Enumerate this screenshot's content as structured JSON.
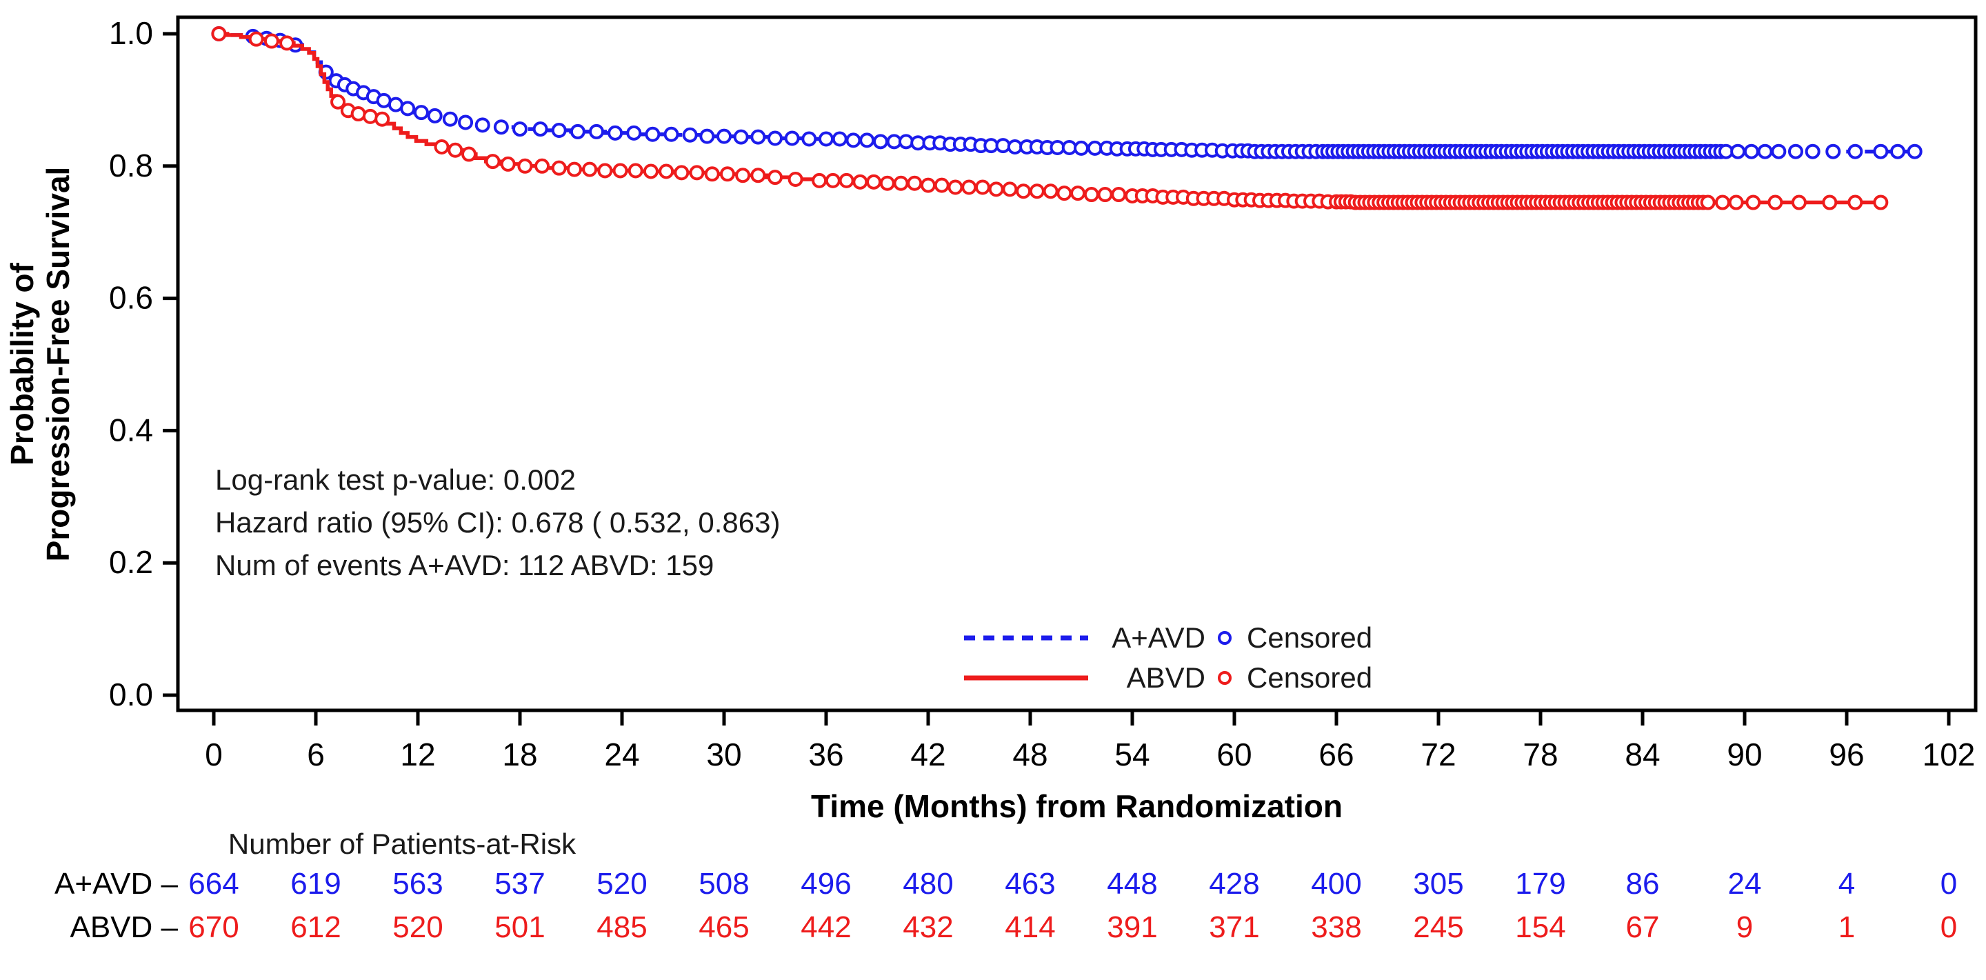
{
  "chart_data": {
    "type": "line",
    "subtype": "kaplan-meier-step",
    "title": "",
    "xlabel": "Time (Months) from Randomization",
    "ylabel_lines": [
      "Probability of",
      "Progression-Free Survival"
    ],
    "xlim": [
      0,
      102
    ],
    "ylim": [
      0.0,
      1.0
    ],
    "grid": false,
    "x_ticks": [
      0,
      6,
      12,
      18,
      24,
      30,
      36,
      42,
      48,
      54,
      60,
      66,
      72,
      78,
      84,
      90,
      96,
      102
    ],
    "y_ticks": [
      "1.0",
      "0.8",
      "0.6",
      "0.4",
      "0.2",
      "0.0"
    ],
    "annotation_lines": [
      "Log-rank test p-value: 0.002",
      "Hazard ratio (95% CI):  0.678 ( 0.532,  0.863)",
      "Num of events  A+AVD: 112  ABVD: 159"
    ],
    "legend": [
      {
        "series": "A+AVD",
        "line_style": "dashed",
        "censored_label": "Censored",
        "color": "#1c1cec"
      },
      {
        "series": "ABVD",
        "line_style": "solid",
        "censored_label": "Censored",
        "color": "#ee1c1c"
      }
    ],
    "series": [
      {
        "name": "A+AVD",
        "color": "#1c1cec",
        "line_style": "dashed",
        "marker": "open-circle",
        "steps": [
          [
            0,
            1.0
          ],
          [
            0.8,
            0.998
          ],
          [
            1.6,
            0.996
          ],
          [
            2.4,
            0.993
          ],
          [
            3.2,
            0.99
          ],
          [
            4.0,
            0.987
          ],
          [
            4.7,
            0.983
          ],
          [
            5.2,
            0.978
          ],
          [
            5.6,
            0.972
          ],
          [
            5.9,
            0.965
          ],
          [
            6.1,
            0.957
          ],
          [
            6.3,
            0.949
          ],
          [
            6.5,
            0.942
          ],
          [
            6.8,
            0.935
          ],
          [
            7.1,
            0.929
          ],
          [
            7.5,
            0.923
          ],
          [
            7.9,
            0.917
          ],
          [
            8.4,
            0.911
          ],
          [
            9.0,
            0.905
          ],
          [
            9.6,
            0.899
          ],
          [
            10.3,
            0.893
          ],
          [
            11.0,
            0.887
          ],
          [
            11.8,
            0.881
          ],
          [
            12.6,
            0.876
          ],
          [
            13.5,
            0.871
          ],
          [
            14.5,
            0.866
          ],
          [
            15.5,
            0.862
          ],
          [
            16.6,
            0.859
          ],
          [
            18.0,
            0.856
          ],
          [
            19.5,
            0.854
          ],
          [
            21.0,
            0.852
          ],
          [
            23.0,
            0.85
          ],
          [
            25.0,
            0.848
          ],
          [
            27.0,
            0.847
          ],
          [
            29.0,
            0.845
          ],
          [
            31.0,
            0.844
          ],
          [
            33.0,
            0.842
          ],
          [
            35.0,
            0.841
          ],
          [
            37.0,
            0.839
          ],
          [
            39.0,
            0.837
          ],
          [
            41.0,
            0.835
          ],
          [
            43.0,
            0.833
          ],
          [
            45.0,
            0.831
          ],
          [
            47.0,
            0.829
          ],
          [
            49.0,
            0.828
          ],
          [
            51.0,
            0.827
          ],
          [
            53.0,
            0.826
          ],
          [
            55.0,
            0.825
          ],
          [
            57.0,
            0.824
          ],
          [
            59.0,
            0.823
          ],
          [
            61.0,
            0.822
          ],
          [
            100.0,
            0.822
          ]
        ],
        "censor_times": [
          0.3,
          2.3,
          3.1,
          3.9,
          4.8,
          6.6,
          7.2,
          7.7,
          8.2,
          8.8,
          9.4,
          10.0,
          10.7,
          11.4,
          12.2,
          13.0,
          13.9,
          14.8,
          15.8,
          16.9,
          18.0,
          19.2,
          20.3,
          21.4,
          22.5,
          23.6,
          24.7,
          25.8,
          26.9,
          28.0,
          29.0,
          30.0,
          31.0,
          32.0,
          33.0,
          34.0,
          35.0,
          36.0,
          36.8,
          37.6,
          38.4,
          39.2,
          40.0,
          40.7,
          41.4,
          42.1,
          42.7,
          43.3,
          43.9,
          44.5,
          45.1,
          45.7,
          46.4,
          47.1,
          47.8,
          48.4,
          49.0,
          49.6,
          50.3,
          51.0,
          51.8,
          52.5,
          53.1,
          53.7,
          54.2,
          54.7,
          55.2,
          55.7,
          56.3,
          56.9,
          57.5,
          58.1,
          58.7,
          59.3,
          59.9,
          60.4,
          60.8,
          61.2,
          61.6,
          62.0,
          62.4,
          62.8,
          63.2,
          63.6,
          64.0,
          64.4,
          64.8,
          89.6,
          90.4,
          91.2,
          92.0,
          93.0,
          94.0,
          95.2,
          96.5,
          98.0,
          99.0,
          100.0
        ],
        "censor_dense_ranges": [
          {
            "start": 65.2,
            "end": 89.0,
            "step": 0.3
          }
        ]
      },
      {
        "name": "ABVD",
        "color": "#ee1c1c",
        "line_style": "solid",
        "marker": "open-circle",
        "steps": [
          [
            0,
            1.0
          ],
          [
            0.8,
            0.998
          ],
          [
            1.6,
            0.995
          ],
          [
            2.4,
            0.992
          ],
          [
            3.2,
            0.989
          ],
          [
            4.0,
            0.986
          ],
          [
            4.7,
            0.982
          ],
          [
            5.2,
            0.977
          ],
          [
            5.6,
            0.971
          ],
          [
            5.9,
            0.962
          ],
          [
            6.1,
            0.951
          ],
          [
            6.3,
            0.939
          ],
          [
            6.5,
            0.927
          ],
          [
            6.7,
            0.916
          ],
          [
            6.9,
            0.906
          ],
          [
            7.2,
            0.897
          ],
          [
            7.5,
            0.89
          ],
          [
            7.9,
            0.884
          ],
          [
            8.4,
            0.879
          ],
          [
            9.0,
            0.875
          ],
          [
            9.7,
            0.871
          ],
          [
            10.2,
            0.864
          ],
          [
            10.6,
            0.857
          ],
          [
            11.0,
            0.85
          ],
          [
            11.4,
            0.844
          ],
          [
            11.9,
            0.838
          ],
          [
            12.5,
            0.833
          ],
          [
            13.2,
            0.829
          ],
          [
            14.0,
            0.824
          ],
          [
            14.8,
            0.818
          ],
          [
            15.4,
            0.812
          ],
          [
            16.0,
            0.807
          ],
          [
            16.9,
            0.803
          ],
          [
            18.0,
            0.8
          ],
          [
            19.5,
            0.797
          ],
          [
            21.0,
            0.795
          ],
          [
            23.0,
            0.793
          ],
          [
            25.0,
            0.792
          ],
          [
            27.0,
            0.79
          ],
          [
            29.0,
            0.788
          ],
          [
            31.0,
            0.786
          ],
          [
            32.5,
            0.783
          ],
          [
            34.0,
            0.78
          ],
          [
            35.5,
            0.778
          ],
          [
            37.5,
            0.776
          ],
          [
            39.5,
            0.774
          ],
          [
            41.5,
            0.771
          ],
          [
            43.5,
            0.768
          ],
          [
            45.5,
            0.765
          ],
          [
            47.5,
            0.762
          ],
          [
            49.5,
            0.759
          ],
          [
            51.5,
            0.757
          ],
          [
            53.5,
            0.755
          ],
          [
            55.5,
            0.753
          ],
          [
            57.5,
            0.751
          ],
          [
            59.5,
            0.749
          ],
          [
            61.5,
            0.748
          ],
          [
            63.5,
            0.747
          ],
          [
            65.5,
            0.746
          ],
          [
            67.0,
            0.745
          ],
          [
            98.0,
            0.745
          ]
        ],
        "censor_times": [
          0.3,
          2.5,
          3.4,
          4.3,
          7.3,
          7.9,
          8.5,
          9.2,
          9.9,
          13.4,
          14.2,
          15.0,
          16.4,
          17.3,
          18.3,
          19.3,
          20.3,
          21.2,
          22.1,
          23.0,
          23.9,
          24.8,
          25.7,
          26.6,
          27.5,
          28.4,
          29.3,
          30.2,
          31.1,
          32.0,
          33.0,
          34.2,
          35.6,
          36.4,
          37.2,
          38.0,
          38.8,
          39.6,
          40.4,
          41.2,
          42.0,
          42.8,
          43.6,
          44.4,
          45.2,
          46.0,
          46.8,
          47.6,
          48.4,
          49.2,
          50.0,
          50.8,
          51.6,
          52.4,
          53.2,
          54.0,
          54.6,
          55.2,
          55.8,
          56.4,
          57.0,
          57.6,
          58.2,
          58.8,
          59.4,
          60.0,
          60.5,
          61.0,
          61.5,
          62.0,
          62.5,
          63.0,
          63.5,
          64.0,
          64.5,
          65.0,
          65.5,
          88.7,
          89.5,
          90.5,
          91.8,
          93.2,
          95.0,
          96.5,
          98.0
        ],
        "censor_dense_ranges": [
          {
            "start": 66.0,
            "end": 88.0,
            "step": 0.28
          }
        ]
      }
    ],
    "risk_table": {
      "header": "Number of Patients-at-Risk",
      "rows": [
        {
          "label": "A+AVD",
          "color": "#1c1cec",
          "values": [
            664,
            619,
            563,
            537,
            520,
            508,
            496,
            480,
            463,
            448,
            428,
            400,
            305,
            179,
            86,
            24,
            4,
            0
          ]
        },
        {
          "label": "ABVD",
          "color": "#ee1c1c",
          "values": [
            670,
            612,
            520,
            501,
            485,
            465,
            442,
            432,
            414,
            391,
            371,
            338,
            245,
            154,
            67,
            9,
            1,
            0
          ]
        }
      ]
    },
    "colors": {
      "axis": "#000000",
      "annotation_text": "#1a1a1a",
      "legend_text": "#1a1a1a",
      "risk_header_text": "#1a1a1a",
      "background": "#ffffff"
    }
  }
}
